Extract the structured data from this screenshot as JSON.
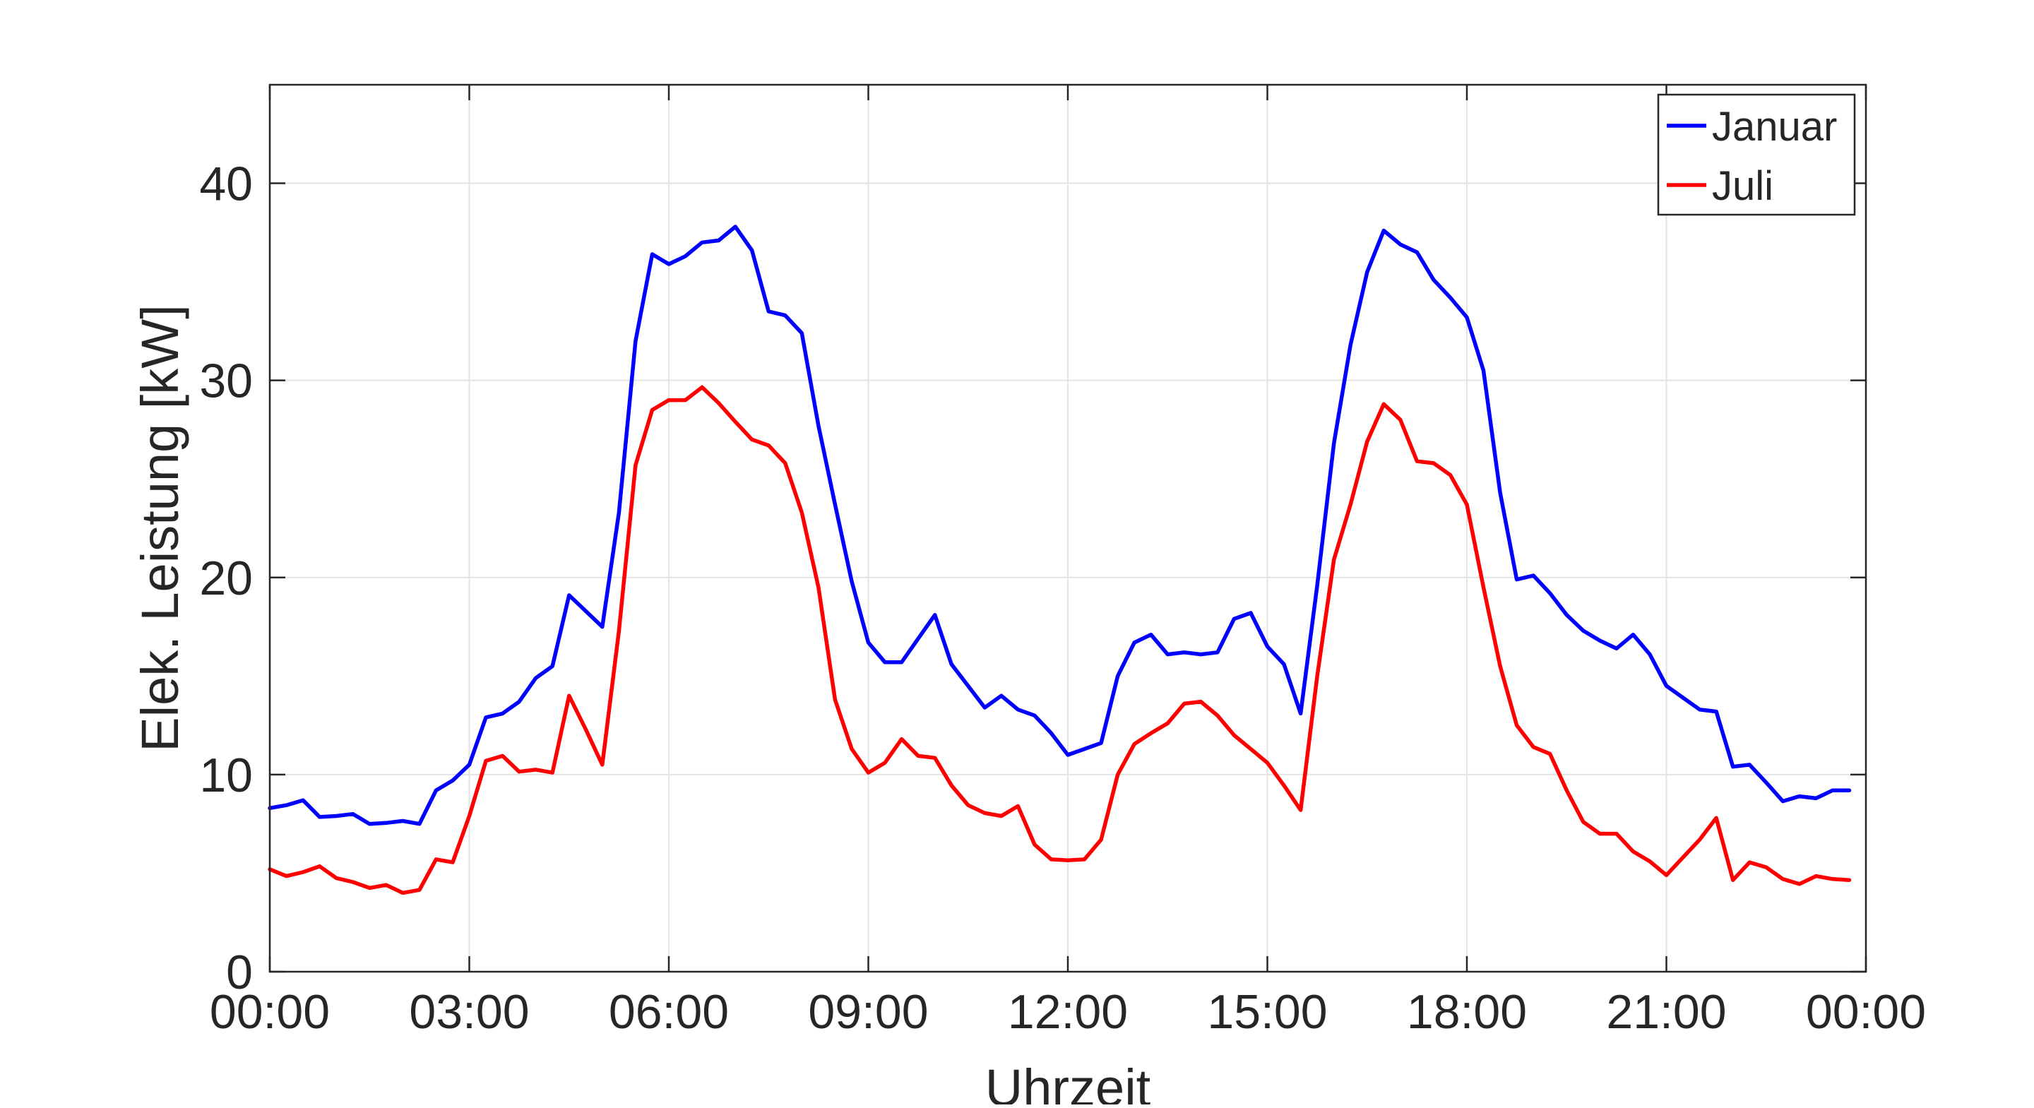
{
  "chart_data": {
    "type": "line",
    "title": "",
    "xlabel": "Uhrzeit",
    "ylabel": "Elek. Leistung [kW]",
    "xlim": [
      0,
      24
    ],
    "ylim": [
      0,
      45
    ],
    "grid": true,
    "legend_position": "top-right",
    "x_ticks": [
      {
        "value": 0,
        "label": "00:00"
      },
      {
        "value": 3,
        "label": "03:00"
      },
      {
        "value": 6,
        "label": "06:00"
      },
      {
        "value": 9,
        "label": "09:00"
      },
      {
        "value": 12,
        "label": "12:00"
      },
      {
        "value": 15,
        "label": "15:00"
      },
      {
        "value": 18,
        "label": "18:00"
      },
      {
        "value": 21,
        "label": "21:00"
      },
      {
        "value": 24,
        "label": "00:00"
      }
    ],
    "y_ticks": [
      {
        "value": 0,
        "label": "0"
      },
      {
        "value": 10,
        "label": "10"
      },
      {
        "value": 20,
        "label": "20"
      },
      {
        "value": 30,
        "label": "30"
      },
      {
        "value": 40,
        "label": "40"
      }
    ],
    "x": [
      0,
      0.25,
      0.5,
      0.75,
      1,
      1.25,
      1.5,
      1.75,
      2,
      2.25,
      2.5,
      2.75,
      3,
      3.25,
      3.5,
      3.75,
      4,
      4.25,
      4.5,
      4.75,
      5,
      5.25,
      5.5,
      5.75,
      6,
      6.25,
      6.5,
      6.75,
      7,
      7.25,
      7.5,
      7.75,
      8,
      8.25,
      8.5,
      8.75,
      9,
      9.25,
      9.5,
      9.75,
      10,
      10.25,
      10.5,
      10.75,
      11,
      11.25,
      11.5,
      11.75,
      12,
      12.25,
      12.5,
      12.75,
      13,
      13.25,
      13.5,
      13.75,
      14,
      14.25,
      14.5,
      14.75,
      15,
      15.25,
      15.5,
      15.75,
      16,
      16.25,
      16.5,
      16.75,
      17,
      17.25,
      17.5,
      17.75,
      18,
      18.25,
      18.5,
      18.75,
      19,
      19.25,
      19.5,
      19.75,
      20,
      20.25,
      20.5,
      20.75,
      21,
      21.25,
      21.5,
      21.75,
      22,
      22.25,
      22.5,
      22.75,
      23,
      23.25,
      23.5,
      23.75
    ],
    "series": [
      {
        "name": "Januar",
        "color": "#0000ff",
        "values": [
          8.3,
          8.45,
          8.7,
          7.85,
          7.9,
          8.0,
          7.5,
          7.55,
          7.65,
          7.5,
          9.2,
          9.7,
          10.5,
          12.9,
          13.1,
          13.7,
          14.9,
          15.5,
          19.1,
          18.3,
          17.5,
          23.3,
          32.0,
          36.4,
          35.9,
          36.3,
          37.0,
          37.1,
          37.8,
          36.6,
          33.5,
          33.3,
          32.4,
          27.7,
          23.7,
          19.8,
          16.7,
          15.7,
          15.7,
          16.9,
          18.1,
          15.6,
          14.5,
          13.4,
          14.0,
          13.3,
          13.0,
          12.1,
          11.0,
          11.3,
          11.6,
          15.0,
          16.7,
          17.1,
          16.1,
          16.2,
          16.1,
          16.2,
          17.9,
          18.2,
          16.5,
          15.6,
          13.1,
          19.6,
          26.8,
          31.8,
          35.5,
          37.6,
          36.9,
          36.5,
          35.1,
          34.2,
          33.2,
          30.5,
          24.3,
          19.9,
          20.1,
          19.2,
          18.1,
          17.3,
          16.8,
          16.4,
          17.1,
          16.1,
          14.5,
          13.9,
          13.3,
          13.2,
          10.4,
          10.5,
          9.6,
          8.65,
          8.9,
          8.8,
          9.2,
          9.2
        ]
      },
      {
        "name": "Juli",
        "color": "#ff0000",
        "values": [
          5.2,
          4.85,
          5.05,
          5.35,
          4.75,
          4.55,
          4.25,
          4.4,
          4.0,
          4.15,
          5.7,
          5.55,
          7.9,
          10.7,
          10.95,
          10.15,
          10.25,
          10.1,
          14.0,
          12.3,
          10.5,
          17.3,
          25.7,
          28.5,
          29.0,
          29.0,
          29.65,
          28.85,
          27.9,
          27.0,
          26.7,
          25.8,
          23.3,
          19.5,
          13.8,
          11.3,
          10.1,
          10.6,
          11.8,
          10.95,
          10.85,
          9.45,
          8.45,
          8.05,
          7.9,
          8.4,
          6.45,
          5.7,
          5.65,
          5.7,
          6.7,
          10.0,
          11.55,
          12.1,
          12.6,
          13.6,
          13.7,
          13.0,
          12.0,
          11.3,
          10.6,
          9.45,
          8.2,
          15.0,
          20.9,
          23.7,
          26.9,
          28.8,
          28.0,
          25.9,
          25.8,
          25.2,
          23.7,
          19.5,
          15.5,
          12.5,
          11.4,
          11.05,
          9.2,
          7.6,
          7.0,
          7.0,
          6.1,
          5.6,
          4.9,
          5.8,
          6.7,
          7.8,
          4.65,
          5.55,
          5.3,
          4.7,
          4.45,
          4.85,
          4.7,
          4.65
        ]
      }
    ]
  }
}
